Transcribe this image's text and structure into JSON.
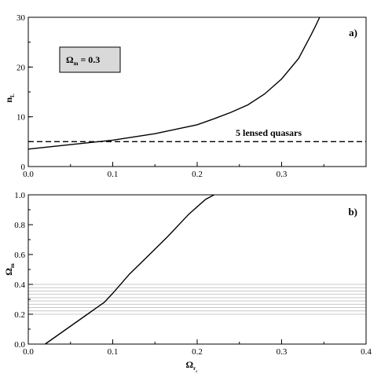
{
  "chart_data": [
    {
      "type": "line",
      "panel_tag": "a)",
      "ylabel": "n",
      "ylabel_sub": "L",
      "xlim": [
        0,
        0.4
      ],
      "ylim": [
        0,
        30
      ],
      "x_ticks": [
        0,
        0.1,
        0.2,
        0.3
      ],
      "x_tick_labels": [
        "0.0",
        "0.1",
        "0.2",
        "0.3"
      ],
      "y_ticks": [
        0,
        10,
        20,
        30
      ],
      "y_tick_labels": [
        "0",
        "10",
        "20",
        "30"
      ],
      "legend_box": {
        "main": "Ω",
        "sub": "m",
        "rest": " = 0.3",
        "fill": "#d9d9d9"
      },
      "series": [
        {
          "style": "solid",
          "x": [
            0,
            0.05,
            0.1,
            0.15,
            0.2,
            0.22,
            0.24,
            0.26,
            0.28,
            0.3,
            0.32,
            0.335,
            0.34,
            0.345
          ],
          "y": [
            3.5,
            4.4,
            5.3,
            6.6,
            8.4,
            9.6,
            10.9,
            12.4,
            14.6,
            17.6,
            21.7,
            26.5,
            28.2,
            30
          ]
        }
      ],
      "hlines": [
        {
          "y": 5,
          "style": "dashed",
          "label": "5 lensed quasars"
        }
      ]
    },
    {
      "type": "line",
      "panel_tag": "b)",
      "ylabel": "Ω",
      "ylabel_sub": "m",
      "xlabel": "Ω",
      "xlabel_sub": "r",
      "xlabel_subsub": "c",
      "xlim": [
        0,
        0.4
      ],
      "ylim": [
        0,
        1
      ],
      "x_ticks": [
        0,
        0.1,
        0.2,
        0.3,
        0.4
      ],
      "x_tick_labels": [
        "0.0",
        "0.1",
        "0.2",
        "0.3",
        "0.4"
      ],
      "y_ticks": [
        0,
        0.2,
        0.4,
        0.6,
        0.8,
        1.0
      ],
      "y_tick_labels": [
        "0.0",
        "0.2",
        "0.4",
        "0.6",
        "0.8",
        "1.0"
      ],
      "shaded_band": {
        "y_min": 0.2,
        "y_max": 0.4,
        "line_count": 10,
        "color": "#c8c8c8"
      },
      "series": [
        {
          "style": "solid",
          "x": [
            0.02,
            0.045,
            0.07,
            0.09,
            0.1,
            0.12,
            0.14,
            0.165,
            0.19,
            0.21,
            0.22
          ],
          "y": [
            0,
            0.1,
            0.2,
            0.28,
            0.34,
            0.47,
            0.58,
            0.72,
            0.87,
            0.97,
            1.0
          ]
        }
      ]
    }
  ]
}
